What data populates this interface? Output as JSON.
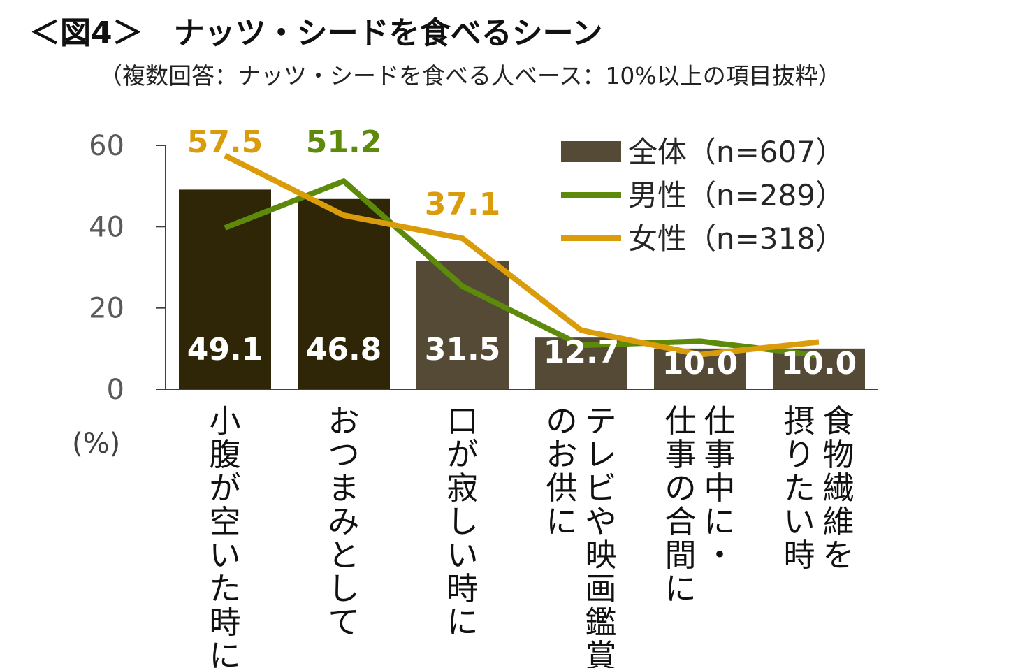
{
  "chart_data": {
    "type": "bar",
    "title": "＜図4＞　ナッツ・シードを食べるシーン",
    "subtitle": "（複数回答：ナッツ・シードを食べる人ベース：10%以上の項目抜粋）",
    "ylabel": "(%)",
    "ylim": [
      0,
      60
    ],
    "yticks": [
      0,
      20,
      40,
      60
    ],
    "categories": [
      "小腹が空いた時に",
      "おつまみとして",
      "口が寂しい時に",
      "テレビや映画鑑賞のお供に",
      "仕事中に・仕事の合間に",
      "食物繊維を摂りたい時"
    ],
    "category_lines": [
      [
        "小腹が空いた時に"
      ],
      [
        "おつまみとして"
      ],
      [
        "口が寂しい時に"
      ],
      [
        "テレビや映画鑑賞",
        "のお供に"
      ],
      [
        "仕事中に・",
        "仕事の合間に"
      ],
      [
        "食物繊維を",
        "摂りたい時"
      ]
    ],
    "series": [
      {
        "name": "全体（n=607）",
        "kind": "bar",
        "values": [
          49.1,
          46.8,
          31.5,
          12.7,
          10.0,
          10.0
        ],
        "labels": [
          "49.1",
          "46.8",
          "31.5",
          "12.7",
          "10.0",
          "10.0"
        ],
        "colors": [
          "#2e2607",
          "#2e2607",
          "#544a35",
          "#544a35",
          "#544a35",
          "#544a35"
        ]
      },
      {
        "name": "男性（n=289）",
        "kind": "line",
        "color": "#5d8a0b",
        "values": [
          39.7,
          51.2,
          25.3,
          10.8,
          11.8,
          8.3
        ],
        "labels": [
          "",
          "51.2",
          "",
          "",
          "",
          ""
        ]
      },
      {
        "name": "女性（n=318）",
        "kind": "line",
        "color": "#db9c0c",
        "values": [
          57.5,
          42.8,
          37.1,
          14.5,
          8.5,
          11.6
        ],
        "labels": [
          "57.5",
          "",
          "37.1",
          "",
          "",
          ""
        ]
      }
    ],
    "legend_position": "top-right"
  }
}
